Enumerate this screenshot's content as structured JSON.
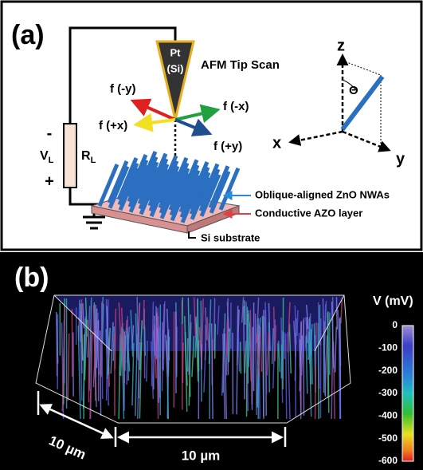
{
  "panel_a": {
    "label": "(a)",
    "tip": {
      "line1": "Pt",
      "line2": "(Si)"
    },
    "tip_caption": "AFM Tip Scan",
    "forces": [
      "f (-y)",
      "f (-x)",
      "f (+x)",
      "f (+y)"
    ],
    "circuit": {
      "minus": "-",
      "plus": "+",
      "voltage": {
        "main": "V",
        "sub": "L"
      },
      "resistor": {
        "main": "R",
        "sub": "L"
      }
    },
    "axes": {
      "z": "z",
      "x": "x",
      "y": "y",
      "angle": "Θ"
    },
    "layers": [
      "Oblique-aligned ZnO NWAs",
      "Conductive AZO layer",
      "Si substrate"
    ]
  },
  "panel_b": {
    "label": "(b)",
    "colorbar": {
      "title": "V (mV)",
      "ticks": [
        "0",
        "-100",
        "-200",
        "-300",
        "-400",
        "-500",
        "-600"
      ]
    },
    "scale_left": "10 µm",
    "scale_bottom": "10 µm"
  }
}
